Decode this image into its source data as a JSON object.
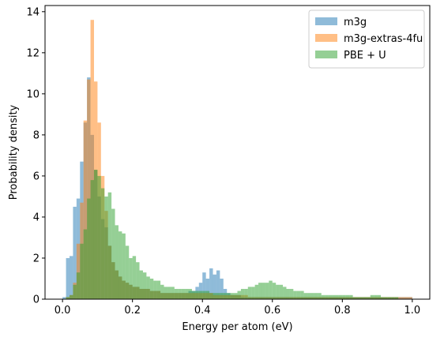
{
  "chart_data": {
    "type": "bar",
    "subtype": "overlapping-histogram",
    "title": "",
    "xlabel": "Energy per atom (eV)",
    "ylabel": "Probability density",
    "xlim": [
      -0.05,
      1.05
    ],
    "ylim": [
      0,
      14.3
    ],
    "xticks": [
      0.0,
      0.2,
      0.4,
      0.6,
      0.8,
      1.0
    ],
    "xtick_labels": [
      "0.0",
      "0.2",
      "0.4",
      "0.6",
      "0.8",
      "1.0"
    ],
    "yticks": [
      0,
      2,
      4,
      6,
      8,
      10,
      12,
      14
    ],
    "ytick_labels": [
      "0",
      "2",
      "4",
      "6",
      "8",
      "10",
      "12",
      "14"
    ],
    "legend_position": "top-right",
    "grid": false,
    "bin_width": 0.01,
    "x_start": 0.0,
    "series": [
      {
        "name": "m3g",
        "color": "#1f77b4",
        "opacity": 0.5,
        "values": [
          0.1,
          2.0,
          2.1,
          4.5,
          4.9,
          6.7,
          8.6,
          10.8,
          8.0,
          6.3,
          5.0,
          3.9,
          3.5,
          2.6,
          1.8,
          1.4,
          1.1,
          0.9,
          0.8,
          0.7,
          0.6,
          0.6,
          0.5,
          0.5,
          0.5,
          0.4,
          0.4,
          0.4,
          0.3,
          0.3,
          0.3,
          0.3,
          0.3,
          0.3,
          0.3,
          0.3,
          0.4,
          0.4,
          0.6,
          0.8,
          1.3,
          1.0,
          1.5,
          1.2,
          1.4,
          1.0,
          0.5,
          0.3,
          0.2,
          0.2,
          0.2,
          0.1,
          0.1,
          0.1,
          0.1,
          0.1,
          0.1,
          0.1,
          0.1,
          0.1,
          0.1,
          0.1,
          0.1,
          0.1,
          0.1,
          0.1,
          0.1,
          0.1,
          0.1,
          0.1,
          0.1,
          0.1,
          0.1,
          0.1,
          0.1,
          0.1,
          0.1,
          0.1,
          0.1,
          0.1,
          0.1,
          0.1,
          0.1,
          0.1,
          0.1,
          0.1,
          0.1,
          0.1,
          0.1,
          0.1,
          0.1,
          0.1,
          0.1,
          0.1,
          0.1,
          0.1,
          0.1,
          0.1,
          0.1,
          0.1
        ]
      },
      {
        "name": "m3g-extras-4fu",
        "color": "#ff7f0e",
        "opacity": 0.5,
        "values": [
          0.0,
          0.1,
          0.2,
          0.8,
          2.7,
          4.7,
          8.7,
          10.7,
          13.6,
          10.6,
          8.6,
          6.0,
          4.3,
          2.6,
          1.8,
          1.4,
          1.1,
          0.9,
          0.8,
          0.7,
          0.6,
          0.6,
          0.5,
          0.5,
          0.5,
          0.4,
          0.4,
          0.4,
          0.3,
          0.3,
          0.3,
          0.3,
          0.3,
          0.3,
          0.3,
          0.3,
          0.3,
          0.3,
          0.3,
          0.3,
          0.3,
          0.3,
          0.3,
          0.2,
          0.2,
          0.2,
          0.2,
          0.2,
          0.2,
          0.2,
          0.2,
          0.2,
          0.2,
          0.1,
          0.1,
          0.1,
          0.1,
          0.1,
          0.1,
          0.1,
          0.1,
          0.1,
          0.1,
          0.1,
          0.1,
          0.1,
          0.1,
          0.1,
          0.1,
          0.1,
          0.1,
          0.1,
          0.1,
          0.1,
          0.1,
          0.1,
          0.1,
          0.1,
          0.1,
          0.1,
          0.1,
          0.1,
          0.1,
          0.1,
          0.1,
          0.1,
          0.1,
          0.1,
          0.1,
          0.1,
          0.1,
          0.1,
          0.1,
          0.1,
          0.1,
          0.1,
          0.1,
          0.1,
          0.1,
          0.1
        ]
      },
      {
        "name": "PBE + U",
        "color": "#2ca02c",
        "opacity": 0.5,
        "values": [
          0.0,
          0.1,
          0.2,
          0.7,
          1.3,
          2.7,
          3.4,
          4.9,
          5.8,
          6.3,
          6.0,
          5.4,
          5.0,
          5.2,
          4.4,
          3.6,
          3.3,
          3.2,
          2.6,
          2.0,
          2.1,
          1.8,
          1.4,
          1.3,
          1.1,
          1.0,
          0.9,
          0.9,
          0.7,
          0.6,
          0.6,
          0.6,
          0.5,
          0.5,
          0.5,
          0.5,
          0.5,
          0.4,
          0.4,
          0.4,
          0.4,
          0.4,
          0.3,
          0.3,
          0.3,
          0.3,
          0.3,
          0.3,
          0.3,
          0.3,
          0.4,
          0.5,
          0.5,
          0.6,
          0.6,
          0.7,
          0.8,
          0.8,
          0.8,
          0.9,
          0.8,
          0.7,
          0.7,
          0.6,
          0.5,
          0.5,
          0.4,
          0.4,
          0.4,
          0.3,
          0.3,
          0.3,
          0.3,
          0.3,
          0.2,
          0.2,
          0.2,
          0.2,
          0.2,
          0.2,
          0.2,
          0.2,
          0.2,
          0.1,
          0.1,
          0.1,
          0.1,
          0.1,
          0.2,
          0.2,
          0.2,
          0.1,
          0.1,
          0.1,
          0.1,
          0.1,
          0.0,
          0.0,
          0.0,
          0.0
        ]
      }
    ]
  }
}
